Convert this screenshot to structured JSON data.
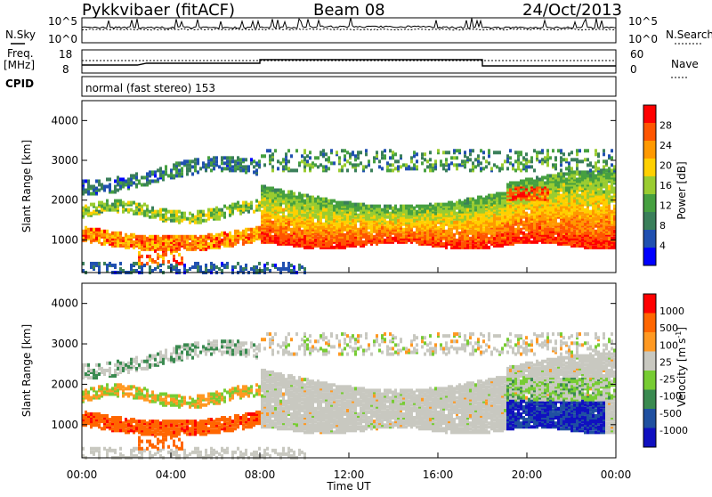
{
  "header": {
    "station": "Pykkvibaer (fitACF)",
    "beam": "Beam 08",
    "date": "24/Oct/2013"
  },
  "left_labels": {
    "nsky": "N.Sky",
    "freq_line1": "Freq.",
    "freq_line2": "[MHz]",
    "cpid": "CPID"
  },
  "right_labels": {
    "nsearch": "N.Search",
    "nave": "Nave"
  },
  "mode_text": "normal (fast stereo) 153",
  "noise_axis": {
    "top": "10^5",
    "bottom": "10^0"
  },
  "freq_axis": {
    "top": "18",
    "bottom": "8"
  },
  "nave_axis": {
    "top": "60",
    "bottom": "0"
  },
  "chart_data": [
    {
      "type": "heatmap",
      "panel": "power",
      "ylabel": "Slant Range [km]",
      "xlabel": "",
      "colorbar_label": "Power [dB]",
      "ylim": [
        180,
        4500
      ],
      "xlim": [
        "00:00",
        "24:00"
      ],
      "y_ticks": [
        "4000",
        "3000",
        "2000",
        "1000"
      ],
      "colorbar_ticks": [
        "28",
        "24",
        "20",
        "16",
        "12",
        "8",
        "4"
      ],
      "colorscale": [
        "#0000ff",
        "#2050b0",
        "#3a7f5a",
        "#46a040",
        "#9acc30",
        "#ffd000",
        "#ff9900",
        "#ff5500",
        "#ff0000"
      ]
    },
    {
      "type": "heatmap",
      "panel": "velocity",
      "ylabel": "Slant Range [km]",
      "xlabel": "Time UT",
      "colorbar_label": "Velocity [m s-1]",
      "colorbar_label_base": "Velocity [m s",
      "colorbar_label_sup": "-1",
      "colorbar_label_end": "]",
      "ylim": [
        180,
        4500
      ],
      "xlim": [
        "00:00",
        "24:00"
      ],
      "y_ticks": [
        "4000",
        "3000",
        "2000",
        "1000"
      ],
      "x_ticks": [
        "00:00",
        "04:00",
        "08:00",
        "12:00",
        "16:00",
        "20:00",
        "00:00"
      ],
      "colorbar_ticks": [
        "1000",
        "500",
        "100",
        "25",
        "-25",
        "-100",
        "-500",
        "-1000"
      ],
      "colorscale": [
        "#1010c0",
        "#2050a0",
        "#3a8a50",
        "#77cc33",
        "#c8c8c0",
        "#ff9922",
        "#ff6600",
        "#ff0000"
      ]
    }
  ]
}
